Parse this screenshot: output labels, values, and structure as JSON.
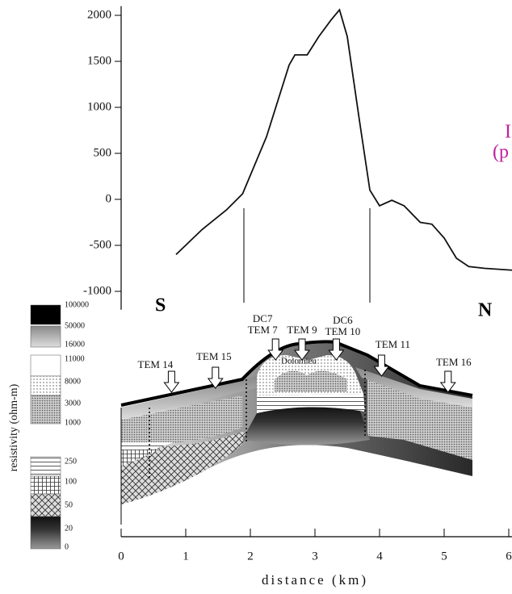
{
  "chart_data": [
    {
      "type": "line",
      "x": [
        0.85,
        1.25,
        1.63,
        1.88,
        2.25,
        2.6,
        2.69,
        2.88,
        3.06,
        3.25,
        3.38,
        3.5,
        3.69,
        3.85,
        4.0,
        4.19,
        4.38,
        4.63,
        4.81,
        5.0,
        5.19,
        5.38,
        5.63,
        6.05
      ],
      "values": [
        -600,
        -330,
        -115,
        60,
        680,
        1460,
        1570,
        1570,
        1770,
        1950,
        2060,
        1770,
        850,
        100,
        -70,
        -10,
        -70,
        -250,
        -270,
        -420,
        -640,
        -730,
        -750,
        -770
      ],
      "color": "#111111",
      "xlim": [
        0,
        6
      ],
      "ylim": [
        -1200,
        2100
      ],
      "yticks": [
        2000,
        1500,
        1000,
        500,
        0,
        -500,
        -1000
      ],
      "annotations": [
        "S",
        "N",
        "I",
        "(p"
      ]
    },
    {
      "type": "cross-section",
      "xlabel": "distance (km)",
      "xlim": [
        0,
        6
      ],
      "xticks": [
        0,
        1,
        2,
        3,
        4,
        5,
        6
      ],
      "stations": [
        {
          "label": "TEM 14",
          "x": 0.78
        },
        {
          "label": "TEM 15",
          "x": 1.46
        },
        {
          "label": "TEM 7",
          "extra": "DC7",
          "x": 2.39
        },
        {
          "label": "TEM 9",
          "x": 2.8
        },
        {
          "label": "TEM 10",
          "extra": "DC6",
          "x": 3.33
        },
        {
          "label": "TEM 11",
          "x": 4.03
        },
        {
          "label": "TEM 16",
          "x": 5.06
        }
      ],
      "annotation": "Dolomieu",
      "colorbar": {
        "label": "resistivity (ohm-m)",
        "ticks": [
          100000,
          50000,
          16000,
          11000,
          8000,
          3000,
          1000,
          250,
          100,
          50,
          20,
          0
        ]
      }
    }
  ]
}
